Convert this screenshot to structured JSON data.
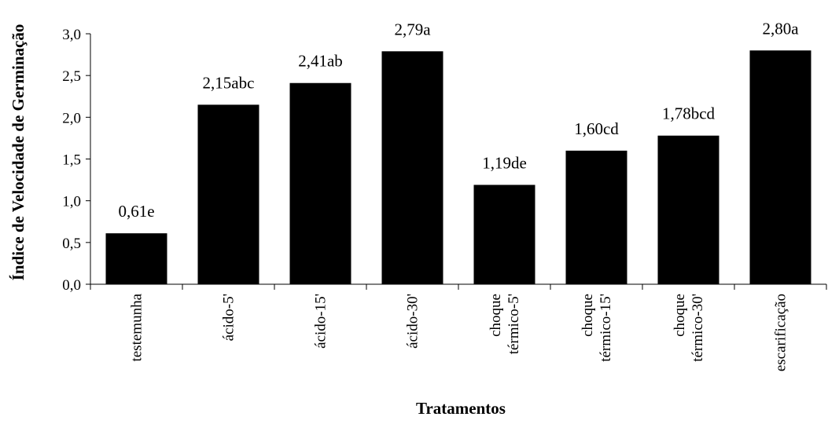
{
  "chart_data": {
    "type": "bar",
    "title": "",
    "xlabel": "Tratamentos",
    "ylabel": "Índice de Velocidade de Germinação",
    "ylim": [
      0,
      3.0
    ],
    "yticks": [
      "0,0",
      "0,5",
      "1,0",
      "1,5",
      "2,0",
      "2,5",
      "3,0"
    ],
    "grid": false,
    "categories": [
      [
        "testemunha"
      ],
      [
        "ácido-5'"
      ],
      [
        "ácido-15'"
      ],
      [
        "ácido-30'"
      ],
      [
        "choque",
        "térmico-5'"
      ],
      [
        "choque",
        "térmico-15'"
      ],
      [
        "choque",
        "térmico-30'"
      ],
      [
        "escarificação"
      ]
    ],
    "values": [
      0.61,
      2.15,
      2.41,
      2.79,
      1.19,
      1.6,
      1.78,
      2.8
    ],
    "data_labels": [
      "0,61e",
      "2,15abc",
      "2,41ab",
      "2,79a",
      "1,19de",
      "1,60cd",
      "1,78bcd",
      "2,80a"
    ],
    "bar_color": "#000000"
  }
}
